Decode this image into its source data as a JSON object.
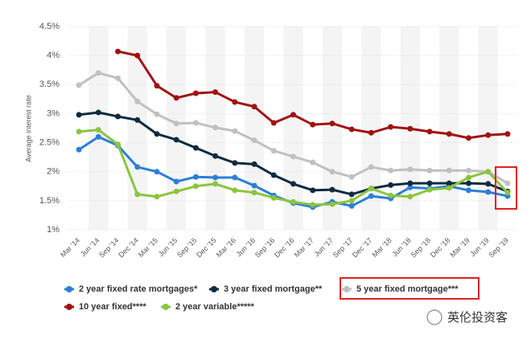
{
  "chart_data": {
    "type": "line",
    "y_label": "Average interest rate",
    "categories": [
      "Mar '14",
      "Jun '14",
      "Sep '14",
      "Dec '14",
      "Mar '15",
      "Jun '15",
      "Sep '15",
      "Dec '15",
      "Mar '16",
      "Jun '16",
      "Sep '16",
      "Dec '16",
      "Mar '17",
      "Jun '17",
      "Sep '17",
      "Dec '17",
      "Mar '18",
      "Jun '18",
      "Sep '18",
      "Dec '18",
      "Mar '19",
      "Jun '19",
      "Sep '19"
    ],
    "series": [
      {
        "name": "2 year fixed rate mortgages*",
        "color": "#2b7fd6",
        "values": [
          2.38,
          2.6,
          2.45,
          2.08,
          2.0,
          1.83,
          1.91,
          1.9,
          1.9,
          1.76,
          1.59,
          1.46,
          1.39,
          1.48,
          1.41,
          1.58,
          1.54,
          1.73,
          1.71,
          1.75,
          1.68,
          1.65,
          1.58
        ]
      },
      {
        "name": "3 year fixed mortgage**",
        "color": "#0e2b3f",
        "values": [
          2.98,
          3.02,
          2.95,
          2.89,
          2.65,
          2.55,
          2.41,
          2.27,
          2.15,
          2.13,
          1.94,
          1.79,
          1.68,
          1.69,
          1.61,
          1.71,
          1.77,
          1.8,
          1.8,
          1.8,
          1.8,
          1.79,
          1.66
        ]
      },
      {
        "name": "5 year fixed mortgage***",
        "color": "#c0c0c0",
        "values": [
          3.49,
          3.7,
          3.61,
          3.21,
          2.99,
          2.83,
          2.84,
          2.76,
          2.7,
          2.54,
          2.36,
          2.26,
          2.16,
          2.0,
          1.91,
          2.08,
          2.02,
          2.04,
          2.02,
          2.02,
          2.02,
          2.0,
          1.8
        ]
      },
      {
        "name": "10 year fixed****",
        "color": "#a01212",
        "values": [
          null,
          null,
          4.07,
          4.0,
          3.48,
          3.27,
          3.35,
          3.37,
          3.2,
          3.12,
          2.84,
          2.98,
          2.81,
          2.83,
          2.73,
          2.67,
          2.77,
          2.74,
          2.69,
          2.65,
          2.58,
          2.63,
          2.65
        ]
      },
      {
        "name": "2 year variable*****",
        "color": "#8cc43f",
        "values": [
          2.69,
          2.72,
          2.47,
          1.61,
          1.57,
          1.66,
          1.75,
          1.79,
          1.68,
          1.64,
          1.55,
          1.48,
          1.43,
          1.44,
          1.5,
          1.71,
          1.59,
          1.57,
          1.69,
          1.72,
          1.9,
          2.0,
          1.64
        ]
      }
    ],
    "ylim": [
      1,
      4.5
    ],
    "yticks": [
      {
        "value": 1,
        "label": "1%"
      },
      {
        "value": 1.5,
        "label": "1.5%"
      },
      {
        "value": 2,
        "label": "2%"
      },
      {
        "value": 2.5,
        "label": "2.5%"
      },
      {
        "value": 3,
        "label": "3%"
      },
      {
        "value": 3.5,
        "label": "3.5%"
      },
      {
        "value": 4,
        "label": "4%"
      },
      {
        "value": 4.5,
        "label": "4.5%"
      }
    ],
    "grid": true,
    "watermark": "英伦投资客"
  }
}
